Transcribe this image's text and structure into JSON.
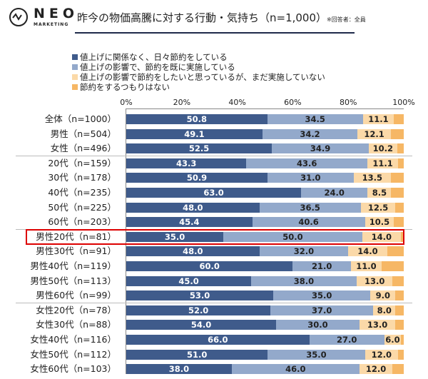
{
  "header": {
    "logo_text": "NEO",
    "logo_sub": "MARKETING",
    "title": "昨今の物価高騰に対する行動・気持ち（n=1,000）",
    "note": "※回答者：全員"
  },
  "colors": {
    "series": [
      "#3f5b8b",
      "#93a9cb",
      "#fbd9a8",
      "#f6b765"
    ],
    "highlight": "#dd0000",
    "title_rule": "#1f2a4a"
  },
  "chart_data": {
    "type": "bar",
    "orientation": "horizontal",
    "stacked": true,
    "xlim": [
      0,
      100
    ],
    "x_ticks": [
      "0%",
      "20%",
      "40%",
      "60%",
      "80%",
      "100%"
    ],
    "legend_position": "top",
    "categories": [
      "全体（n=1000）",
      "男性（n=504）",
      "女性（n=496）",
      "20代（n=159）",
      "30代（n=178）",
      "40代（n=235）",
      "50代（n=225）",
      "60代（n=203）",
      "男性20代（n=81）",
      "男性30代（n=91）",
      "男性40代（n=119）",
      "男性50代（n=113）",
      "男性60代（n=99）",
      "女性20代（n=78）",
      "女性30代（n=88）",
      "女性40代（n=116）",
      "女性50代（n=112）",
      "女性60代（n=103）"
    ],
    "series": [
      {
        "name": "値上げに関係なく、日々節約をしている",
        "values": [
          50.8,
          49.1,
          52.5,
          43.3,
          50.9,
          63.0,
          48.0,
          45.4,
          35.0,
          48.0,
          60.0,
          45.0,
          53.0,
          52.0,
          54.0,
          66.0,
          51.0,
          38.0
        ],
        "labels": [
          "50.8",
          "49.1",
          "52.5",
          "43.3",
          "50.9",
          "63.0",
          "48.0",
          "45.4",
          "35.0",
          "48.0",
          "60.0",
          "45.0",
          "53.0",
          "52.0",
          "54.0",
          "66.0",
          "51.0",
          "38.0"
        ]
      },
      {
        "name": "値上げの影響で、節約を既に実施している",
        "values": [
          34.5,
          34.2,
          34.9,
          43.6,
          31.0,
          24.0,
          36.5,
          40.6,
          50.0,
          32.0,
          21.0,
          38.0,
          35.0,
          37.0,
          30.0,
          27.0,
          35.0,
          46.0
        ],
        "labels": [
          "34.5",
          "34.2",
          "34.9",
          "43.6",
          "31.0",
          "24.0",
          "36.5",
          "40.6",
          "50.0",
          "32.0",
          "21.0",
          "38.0",
          "35.0",
          "37.0",
          "30.0",
          "27.0",
          "35.0",
          "46.0"
        ]
      },
      {
        "name": "値上げの影響で節約をしたいと思っているが、まだ実施していない",
        "values": [
          11.1,
          12.1,
          10.2,
          11.1,
          13.5,
          8.5,
          12.5,
          10.5,
          14.0,
          14.0,
          11.0,
          13.0,
          9.0,
          8.0,
          13.0,
          6.0,
          12.0,
          12.0
        ],
        "labels": [
          "11.1",
          "12.1",
          "10.2",
          "11.1",
          "13.5",
          "8.5",
          "12.5",
          "10.5",
          "14.0",
          "14.0",
          "11.0",
          "13.0",
          "9.0",
          "8.0",
          "13.0",
          "6.0",
          "12.0",
          "12.0"
        ]
      },
      {
        "name": "節約をするつもりはない",
        "values": [
          3.6,
          4.6,
          2.4,
          2.0,
          4.6,
          4.5,
          3.0,
          3.5,
          1.0,
          6.0,
          8.0,
          4.0,
          3.0,
          3.0,
          3.0,
          1.0,
          2.0,
          4.0
        ]
      }
    ],
    "highlighted_category": "男性20代（n=81）"
  }
}
